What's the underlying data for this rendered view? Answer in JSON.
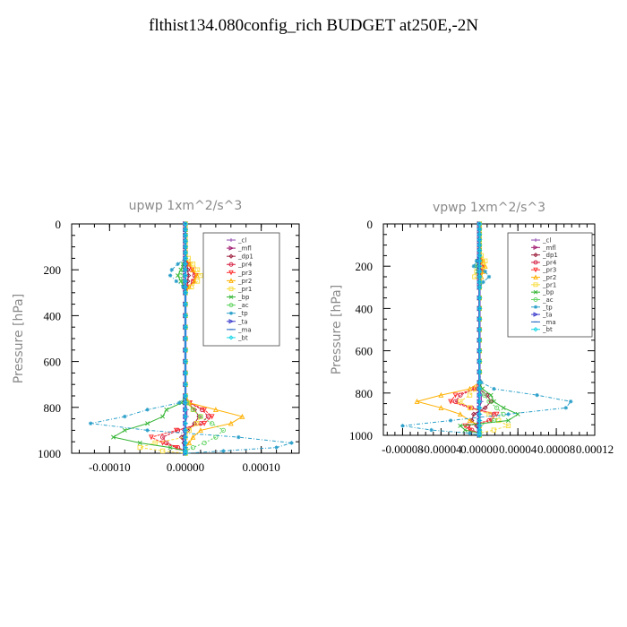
{
  "page": {
    "title": "flthist134.080config_rich  BUDGET at250E,-2N"
  },
  "series_styles": [
    {
      "name": "_cl",
      "color": "#8e44ad",
      "marker": "plus"
    },
    {
      "name": "_mfl",
      "color": "#a01a6e",
      "marker": "tri_right"
    },
    {
      "name": "_dp1",
      "color": "#9b1b3a",
      "marker": "diamond"
    },
    {
      "name": "_pr4",
      "color": "#d4183b",
      "marker": "circle"
    },
    {
      "name": "_pr3",
      "color": "#ff3030",
      "marker": "tri_down"
    },
    {
      "name": "_pr2",
      "color": "#ffb000",
      "marker": "tri_up"
    },
    {
      "name": "_pr1",
      "color": "#f7dc3a",
      "marker": "square"
    },
    {
      "name": "_bp",
      "color": "#32b432",
      "marker": "cross"
    },
    {
      "name": "_ac",
      "color": "#5fd35f",
      "marker": "circle"
    },
    {
      "name": "_tp",
      "color": "#2a9fc9",
      "marker": "star"
    },
    {
      "name": "_ta",
      "color": "#3a3acc",
      "marker": "tri_right"
    },
    {
      "name": "_ma",
      "color": "#1a60c0",
      "marker": "dash"
    },
    {
      "name": "_bt",
      "color": "#19d7e6",
      "marker": "diamond"
    }
  ],
  "chart_data": [
    {
      "type": "line",
      "title": "upwp   1xm^2/s^3",
      "xlabel": "",
      "ylabel": "Pressure [hPa]",
      "xlim": [
        -0.00015,
        0.00015
      ],
      "ylim": [
        1000,
        0
      ],
      "x_ticks": [
        "-0.00010",
        "0.00000",
        "0.00010"
      ],
      "x_tick_values": [
        -0.0001,
        0.0,
        0.0001
      ],
      "y_ticks": [
        "0",
        "200",
        "400",
        "600",
        "800",
        "1000"
      ],
      "y_tick_values": [
        0,
        200,
        400,
        600,
        800,
        1000
      ],
      "legend": "top-right",
      "levels": [
        0,
        25,
        50,
        75,
        100,
        125,
        150,
        175,
        200,
        225,
        250,
        275,
        300,
        350,
        400,
        450,
        500,
        550,
        600,
        650,
        700,
        750,
        780,
        810,
        840,
        870,
        900,
        930,
        955,
        975,
        990,
        1000
      ],
      "series": [
        {
          "name": "_cl",
          "values": [
            0,
            0,
            0,
            0,
            0,
            0,
            0,
            0,
            0,
            0,
            0,
            0,
            0,
            0,
            0,
            0,
            0,
            0,
            0,
            0,
            0,
            0,
            0,
            2e-06,
            2e-06,
            0,
            -2e-06,
            0,
            1e-06,
            0,
            0,
            0
          ]
        },
        {
          "name": "_mfl",
          "values": [
            0,
            0,
            0,
            0,
            0,
            0,
            0,
            0,
            0,
            0,
            0,
            0,
            0,
            0,
            0,
            0,
            0,
            0,
            0,
            0,
            0,
            0,
            0,
            0,
            0,
            0,
            0,
            0,
            0,
            0,
            0,
            0
          ]
        },
        {
          "name": "_dp1",
          "values": [
            0,
            0,
            0,
            0,
            0,
            0,
            0,
            2e-06,
            3e-06,
            4e-06,
            3e-06,
            2e-06,
            0,
            0,
            0,
            0,
            0,
            0,
            0,
            0,
            0,
            0,
            3e-06,
            1.2e-05,
            1.8e-05,
            1.2e-05,
            3e-06,
            -5e-06,
            -2e-06,
            0,
            0,
            0
          ]
        },
        {
          "name": "_pr4",
          "values": [
            0,
            0,
            0,
            0,
            0,
            0,
            0,
            4e-06,
            8e-06,
            1.2e-05,
            1e-05,
            4e-06,
            0,
            0,
            0,
            0,
            0,
            0,
            0,
            0,
            0,
            0,
            5e-06,
            2.2e-05,
            3e-05,
            2e-05,
            -1e-05,
            -3e-05,
            -2.5e-05,
            -1e-05,
            0,
            0
          ]
        },
        {
          "name": "_pr3",
          "values": [
            0,
            0,
            0,
            0,
            0,
            0,
            0,
            4e-06,
            9e-06,
            1.4e-05,
            1.1e-05,
            5e-06,
            0,
            0,
            0,
            0,
            0,
            0,
            0,
            0,
            0,
            0,
            6e-06,
            2.5e-05,
            3.5e-05,
            2.5e-05,
            -1.2e-05,
            -4.5e-05,
            -3e-05,
            -1.2e-05,
            0,
            0
          ]
        },
        {
          "name": "_pr2",
          "values": [
            0,
            0,
            0,
            0,
            0,
            0,
            0,
            6e-06,
            1e-05,
            1.5e-05,
            1.2e-05,
            5e-06,
            0,
            0,
            0,
            0,
            0,
            0,
            0,
            0,
            0,
            0,
            5e-06,
            4e-05,
            7.5e-05,
            6e-05,
            2e-05,
            1e-05,
            5e-06,
            0,
            0,
            0
          ]
        },
        {
          "name": "_pr1",
          "values": [
            0,
            0,
            0,
            0,
            0,
            0,
            4e-06,
            1e-05,
            1.6e-05,
            2e-05,
            1.6e-05,
            8e-06,
            0,
            0,
            0,
            0,
            0,
            0,
            0,
            0,
            0,
            0,
            3e-06,
            1e-05,
            2e-05,
            1.5e-05,
            5e-06,
            0,
            -4e-05,
            -6e-05,
            -3e-05,
            0
          ]
        },
        {
          "name": "_bp",
          "values": [
            0,
            0,
            0,
            0,
            0,
            0,
            0,
            -3e-06,
            -6e-06,
            -1e-05,
            -6e-06,
            -2e-06,
            0,
            0,
            0,
            0,
            0,
            0,
            0,
            0,
            0,
            0,
            -5e-06,
            -2.5e-05,
            -3e-05,
            -5e-05,
            -8e-05,
            -9.5e-05,
            -6e-05,
            -2e-05,
            0,
            0
          ]
        },
        {
          "name": "_ac",
          "values": [
            0,
            0,
            0,
            0,
            0,
            0,
            0,
            -2e-06,
            -4e-06,
            -6e-06,
            -4e-06,
            -1e-06,
            0,
            0,
            0,
            0,
            0,
            0,
            0,
            0,
            0,
            0,
            2e-06,
            1e-05,
            2e-05,
            3.5e-05,
            5e-05,
            4e-05,
            2.5e-05,
            1e-05,
            0,
            0
          ]
        },
        {
          "name": "_tp",
          "values": [
            0,
            0,
            0,
            0,
            0,
            0,
            0,
            -1e-05,
            -1.8e-05,
            -2e-05,
            -1.2e-05,
            -3e-06,
            0,
            0,
            0,
            0,
            0,
            0,
            0,
            0,
            0,
            0,
            -8e-06,
            -5e-05,
            -8e-05,
            -0.000125,
            -5e-05,
            7e-05,
            0.00014,
            0.00012,
            5e-05,
            0
          ]
        },
        {
          "name": "_ta",
          "values": [
            0,
            0,
            0,
            0,
            0,
            0,
            0,
            0,
            0,
            0,
            0,
            0,
            0,
            0,
            0,
            0,
            0,
            0,
            0,
            0,
            0,
            0,
            0,
            0,
            0,
            0,
            0,
            0,
            0,
            0,
            0,
            0
          ]
        },
        {
          "name": "_ma",
          "values": [
            0,
            0,
            0,
            0,
            0,
            0,
            0,
            0,
            0,
            0,
            0,
            0,
            0,
            0,
            0,
            0,
            0,
            0,
            0,
            0,
            0,
            0,
            0,
            0,
            0,
            0,
            0,
            0,
            0,
            0,
            0,
            0
          ]
        },
        {
          "name": "_bt",
          "values": [
            0,
            0,
            0,
            0,
            0,
            0,
            0,
            0,
            0,
            0,
            0,
            0,
            0,
            0,
            0,
            0,
            0,
            0,
            0,
            0,
            0,
            0,
            0,
            0,
            0,
            0,
            0,
            0,
            0,
            0,
            0,
            0
          ]
        }
      ]
    },
    {
      "type": "line",
      "title": "vpwp   1xm^2/s^3",
      "xlabel": "",
      "ylabel": "Pressure [hPa]",
      "xlim": [
        -0.0001,
        0.00012
      ],
      "ylim": [
        1000,
        0
      ],
      "x_ticks": [
        "-0.00008",
        "-0.00004",
        "0.00000",
        "0.00004",
        "0.00008",
        "0.00012"
      ],
      "x_tick_values": [
        -8e-05,
        -4e-05,
        0.0,
        4e-05,
        8e-05,
        0.00012
      ],
      "y_ticks": [
        "0",
        "200",
        "400",
        "600",
        "800",
        "1000"
      ],
      "y_tick_values": [
        0,
        200,
        400,
        600,
        800,
        1000
      ],
      "legend": "top-right",
      "levels": [
        0,
        25,
        50,
        75,
        100,
        125,
        150,
        175,
        200,
        225,
        250,
        275,
        300,
        350,
        400,
        450,
        500,
        550,
        600,
        650,
        700,
        750,
        780,
        810,
        840,
        870,
        900,
        930,
        955,
        975,
        990,
        1000
      ],
      "series": [
        {
          "name": "_cl",
          "values": [
            0,
            0,
            0,
            0,
            0,
            0,
            0,
            0,
            0,
            0,
            0,
            0,
            0,
            0,
            0,
            0,
            0,
            0,
            0,
            0,
            0,
            0,
            0,
            2e-06,
            2e-06,
            0,
            -2e-06,
            0,
            1e-06,
            0,
            0,
            0
          ]
        },
        {
          "name": "_mfl",
          "values": [
            0,
            0,
            0,
            0,
            0,
            0,
            0,
            0,
            0,
            0,
            0,
            0,
            0,
            0,
            0,
            0,
            0,
            0,
            0,
            0,
            0,
            0,
            0,
            0,
            0,
            0,
            0,
            0,
            0,
            0,
            0,
            0
          ]
        },
        {
          "name": "_dp1",
          "values": [
            0,
            0,
            0,
            0,
            0,
            0,
            0,
            1e-06,
            2e-06,
            1e-06,
            0,
            0,
            0,
            0,
            0,
            0,
            0,
            0,
            0,
            0,
            0,
            0,
            0,
            8e-06,
            1.2e-05,
            6e-06,
            -6e-06,
            -8e-06,
            -3e-06,
            0,
            0,
            0
          ]
        },
        {
          "name": "_pr4",
          "values": [
            0,
            0,
            0,
            0,
            0,
            0,
            0,
            2e-06,
            3e-06,
            2e-06,
            0,
            0,
            0,
            0,
            0,
            0,
            0,
            0,
            0,
            0,
            0,
            0,
            -5e-06,
            -2e-05,
            -2.5e-05,
            -8e-06,
            1.5e-05,
            1e-05,
            -1.2e-05,
            -8e-06,
            0,
            0
          ]
        },
        {
          "name": "_pr3",
          "values": [
            0,
            0,
            0,
            0,
            0,
            0,
            0,
            2e-06,
            3e-06,
            2e-06,
            0,
            0,
            0,
            0,
            0,
            0,
            0,
            0,
            0,
            0,
            0,
            0,
            -5e-06,
            -2.5e-05,
            -3e-05,
            -1e-05,
            1.8e-05,
            1.2e-05,
            -1.5e-05,
            -1e-05,
            0,
            0
          ]
        },
        {
          "name": "_pr2",
          "values": [
            0,
            0,
            0,
            0,
            0,
            0,
            0,
            4e-06,
            6e-06,
            4e-06,
            2e-06,
            0,
            0,
            0,
            0,
            0,
            0,
            0,
            0,
            0,
            0,
            0,
            -1e-05,
            -4e-05,
            -6.5e-05,
            -4e-05,
            -2e-05,
            -1e-05,
            0,
            0,
            0,
            0
          ]
        },
        {
          "name": "_pr1",
          "values": [
            0,
            0,
            0,
            0,
            0,
            0,
            2e-06,
            6e-06,
            4e-06,
            -3e-06,
            -5e-06,
            0,
            0,
            0,
            0,
            0,
            0,
            0,
            0,
            0,
            0,
            0,
            -3e-06,
            -1e-05,
            -2e-05,
            -1e-05,
            1e-05,
            2e-05,
            3e-05,
            1.5e-05,
            0,
            0
          ]
        },
        {
          "name": "_bp",
          "values": [
            0,
            0,
            0,
            0,
            0,
            0,
            0,
            -2e-06,
            -3e-06,
            -2e-06,
            0,
            0,
            0,
            0,
            0,
            0,
            0,
            0,
            0,
            0,
            0,
            0,
            3e-06,
            1.2e-05,
            1.5e-05,
            2.5e-05,
            4e-05,
            3e-05,
            -2e-05,
            -1.5e-05,
            0,
            0
          ]
        },
        {
          "name": "_ac",
          "values": [
            0,
            0,
            0,
            0,
            0,
            0,
            0,
            0,
            -1e-06,
            0,
            0,
            0,
            0,
            0,
            0,
            0,
            0,
            0,
            0,
            0,
            0,
            0,
            0,
            5e-06,
            1e-05,
            1.8e-05,
            2.5e-05,
            1.5e-05,
            0,
            0,
            0,
            0
          ]
        },
        {
          "name": "_tp",
          "values": [
            0,
            0,
            0,
            0,
            0,
            0,
            0,
            -3e-06,
            -6e-06,
            6e-06,
            1e-05,
            4e-06,
            0,
            0,
            0,
            0,
            0,
            0,
            0,
            0,
            0,
            2e-06,
            1.5e-05,
            6e-05,
            9.5e-05,
            9e-05,
            3e-05,
            -3e-05,
            -8e-05,
            -5e-05,
            -1e-05,
            0
          ]
        },
        {
          "name": "_ta",
          "values": [
            0,
            0,
            0,
            0,
            0,
            0,
            0,
            0,
            0,
            0,
            0,
            0,
            0,
            0,
            0,
            0,
            0,
            0,
            0,
            0,
            0,
            0,
            0,
            0,
            0,
            0,
            0,
            0,
            0,
            0,
            0,
            0
          ]
        },
        {
          "name": "_ma",
          "values": [
            0,
            0,
            0,
            0,
            0,
            0,
            0,
            0,
            0,
            0,
            0,
            0,
            0,
            0,
            0,
            0,
            0,
            0,
            0,
            0,
            0,
            0,
            0,
            0,
            0,
            0,
            0,
            0,
            0,
            0,
            0,
            0
          ]
        },
        {
          "name": "_bt",
          "values": [
            0,
            0,
            0,
            0,
            0,
            0,
            0,
            0,
            0,
            0,
            0,
            0,
            0,
            0,
            0,
            0,
            0,
            0,
            0,
            0,
            0,
            0,
            0,
            0,
            0,
            0,
            0,
            0,
            0,
            0,
            0,
            0
          ]
        }
      ]
    }
  ]
}
